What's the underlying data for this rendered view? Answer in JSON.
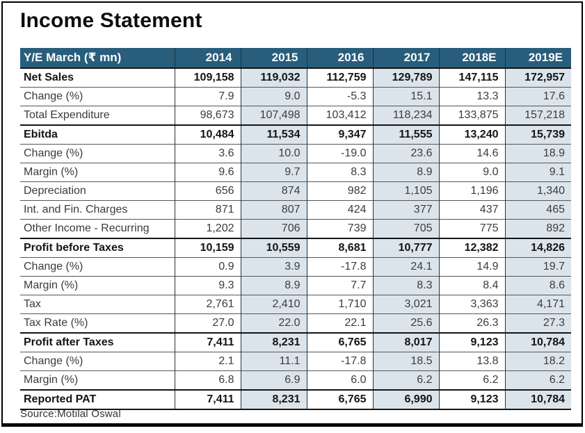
{
  "title": "Income Statement",
  "source_note": "Source:Motilal Oswal",
  "colors": {
    "header_bg": "#285E7C",
    "shaded_column_bg": "#DCE4EB",
    "frame_border": "#000000"
  },
  "table": {
    "header_label": "Y/E March (₹ mn)",
    "columns": [
      "2014",
      "2015",
      "2016",
      "2017",
      "2018E",
      "2019E"
    ],
    "shaded_column_indexes": [
      1,
      3,
      5
    ],
    "rows": [
      {
        "label": "Net Sales",
        "bold": true,
        "values": [
          "109,158",
          "119,032",
          "112,759",
          "129,789",
          "147,115",
          "172,957"
        ]
      },
      {
        "label": "Change (%)",
        "bold": false,
        "values": [
          "7.9",
          "9.0",
          "-5.3",
          "15.1",
          "13.3",
          "17.6"
        ]
      },
      {
        "label": "Total Expenditure",
        "bold": false,
        "values": [
          "98,673",
          "107,498",
          "103,412",
          "118,234",
          "133,875",
          "157,218"
        ]
      },
      {
        "label": "Ebitda",
        "bold": true,
        "values": [
          "10,484",
          "11,534",
          "9,347",
          "11,555",
          "13,240",
          "15,739"
        ]
      },
      {
        "label": "Change (%)",
        "bold": false,
        "values": [
          "3.6",
          "10.0",
          "-19.0",
          "23.6",
          "14.6",
          "18.9"
        ]
      },
      {
        "label": "Margin (%)",
        "bold": false,
        "values": [
          "9.6",
          "9.7",
          "8.3",
          "8.9",
          "9.0",
          "9.1"
        ]
      },
      {
        "label": "Depreciation",
        "bold": false,
        "values": [
          "656",
          "874",
          "982",
          "1,105",
          "1,196",
          "1,340"
        ]
      },
      {
        "label": "Int. and Fin. Charges",
        "bold": false,
        "values": [
          "871",
          "807",
          "424",
          "377",
          "437",
          "465"
        ]
      },
      {
        "label": "Other Income - Recurring",
        "bold": false,
        "values": [
          "1,202",
          "706",
          "739",
          "705",
          "775",
          "892"
        ]
      },
      {
        "label": "Profit before Taxes",
        "bold": true,
        "values": [
          "10,159",
          "10,559",
          "8,681",
          "10,777",
          "12,382",
          "14,826"
        ]
      },
      {
        "label": "Change (%)",
        "bold": false,
        "values": [
          "0.9",
          "3.9",
          "-17.8",
          "24.1",
          "14.9",
          "19.7"
        ]
      },
      {
        "label": "Margin (%)",
        "bold": false,
        "values": [
          "9.3",
          "8.9",
          "7.7",
          "8.3",
          "8.4",
          "8.6"
        ]
      },
      {
        "label": "Tax",
        "bold": false,
        "values": [
          "2,761",
          "2,410",
          "1,710",
          "3,021",
          "3,363",
          "4,171"
        ]
      },
      {
        "label": "Tax Rate (%)",
        "bold": false,
        "values": [
          "27.0",
          "22.0",
          "22.1",
          "25.6",
          "26.3",
          "27.3"
        ]
      },
      {
        "label": "Profit after Taxes",
        "bold": true,
        "values": [
          "7,411",
          "8,231",
          "6,765",
          "8,017",
          "9,123",
          "10,784"
        ]
      },
      {
        "label": "Change (%)",
        "bold": false,
        "values": [
          "2.1",
          "11.1",
          "-17.8",
          "18.5",
          "13.8",
          "18.2"
        ]
      },
      {
        "label": "Margin (%)",
        "bold": false,
        "values": [
          "6.8",
          "6.9",
          "6.0",
          "6.2",
          "6.2",
          "6.2"
        ]
      },
      {
        "label": "Reported PAT",
        "bold": true,
        "values": [
          "7,411",
          "8,231",
          "6,765",
          "6,990",
          "9,123",
          "10,784"
        ]
      }
    ]
  }
}
